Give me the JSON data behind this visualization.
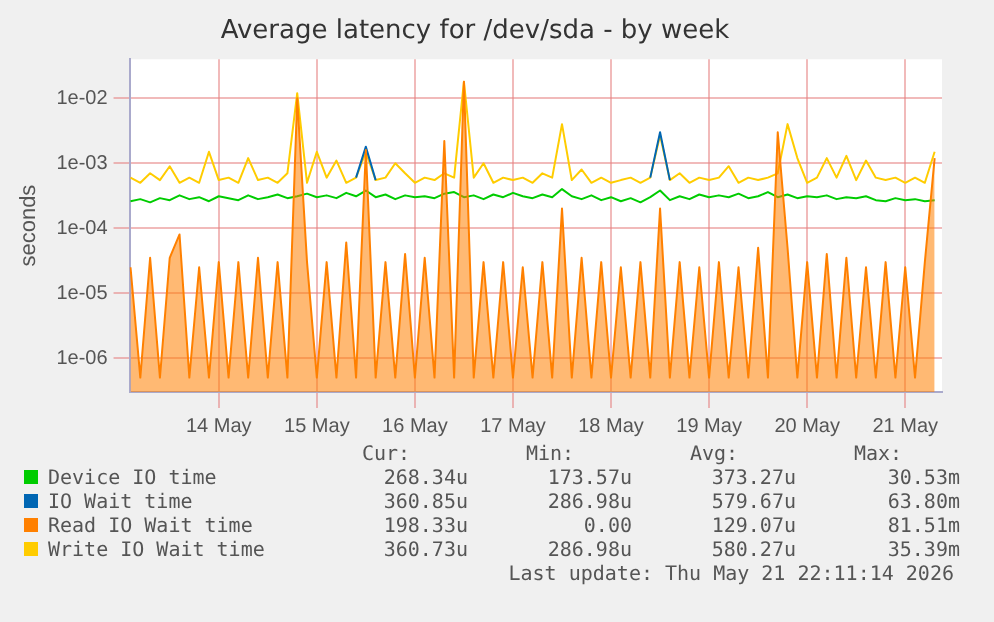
{
  "chart_data": {
    "type": "line",
    "title": "Average latency for /dev/sda - by week",
    "ylabel": "seconds",
    "log": "y",
    "grid": true,
    "legend": "bottom",
    "marker": "none",
    "xlim": [
      "2026-05-13T14:10",
      "2026-05-21T21:00"
    ],
    "xticks": [
      {
        "value": "2026-05-14T12:00",
        "label": "14 May"
      },
      {
        "value": "2026-05-15T12:00",
        "label": "15 May"
      },
      {
        "value": "2026-05-16T12:00",
        "label": "16 May"
      },
      {
        "value": "2026-05-17T12:00",
        "label": "17 May"
      },
      {
        "value": "2026-05-18T12:00",
        "label": "18 May"
      },
      {
        "value": "2026-05-19T12:00",
        "label": "19 May"
      },
      {
        "value": "2026-05-20T12:00",
        "label": "20 May"
      },
      {
        "value": "2026-05-21T12:00",
        "label": "21 May"
      }
    ],
    "ylim": [
      3e-07,
      0.04
    ],
    "yticks": [
      {
        "value": 1e-06,
        "label": "1e-06"
      },
      {
        "value": 1e-05,
        "label": "1e-05"
      },
      {
        "value": 0.0001,
        "label": "1e-04"
      },
      {
        "value": 0.001,
        "label": "1e-03"
      },
      {
        "value": 0.01,
        "label": "1e-02"
      }
    ],
    "x": [
      "2026-05-13T14:24",
      "2026-05-13T16:48",
      "2026-05-13T19:12",
      "2026-05-13T21:36",
      "2026-05-14T00:00",
      "2026-05-14T02:24",
      "2026-05-14T04:48",
      "2026-05-14T07:12",
      "2026-05-14T09:36",
      "2026-05-14T12:00",
      "2026-05-14T14:24",
      "2026-05-14T16:48",
      "2026-05-14T19:12",
      "2026-05-14T21:36",
      "2026-05-15T00:00",
      "2026-05-15T02:24",
      "2026-05-15T04:48",
      "2026-05-15T07:12",
      "2026-05-15T09:36",
      "2026-05-15T12:00",
      "2026-05-15T14:24",
      "2026-05-15T16:48",
      "2026-05-15T19:12",
      "2026-05-15T21:36",
      "2026-05-16T00:00",
      "2026-05-16T02:24",
      "2026-05-16T04:48",
      "2026-05-16T07:12",
      "2026-05-16T09:36",
      "2026-05-16T12:00",
      "2026-05-16T14:24",
      "2026-05-16T16:48",
      "2026-05-16T19:12",
      "2026-05-16T21:36",
      "2026-05-17T00:00",
      "2026-05-17T02:24",
      "2026-05-17T04:48",
      "2026-05-17T07:12",
      "2026-05-17T09:36",
      "2026-05-17T12:00",
      "2026-05-17T14:24",
      "2026-05-17T16:48",
      "2026-05-17T19:12",
      "2026-05-17T21:36",
      "2026-05-18T00:00",
      "2026-05-18T02:24",
      "2026-05-18T04:48",
      "2026-05-18T07:12",
      "2026-05-18T09:36",
      "2026-05-18T12:00",
      "2026-05-18T14:24",
      "2026-05-18T16:48",
      "2026-05-18T19:12",
      "2026-05-18T21:36",
      "2026-05-19T00:00",
      "2026-05-19T02:24",
      "2026-05-19T04:48",
      "2026-05-19T07:12",
      "2026-05-19T09:36",
      "2026-05-19T12:00",
      "2026-05-19T14:24",
      "2026-05-19T16:48",
      "2026-05-19T19:12",
      "2026-05-19T21:36",
      "2026-05-20T00:00",
      "2026-05-20T02:24",
      "2026-05-20T04:48",
      "2026-05-20T07:12",
      "2026-05-20T09:36",
      "2026-05-20T12:00",
      "2026-05-20T14:24",
      "2026-05-20T16:48",
      "2026-05-20T19:12",
      "2026-05-20T21:36",
      "2026-05-21T00:00",
      "2026-05-21T02:24",
      "2026-05-21T04:48",
      "2026-05-21T07:12",
      "2026-05-21T09:36",
      "2026-05-21T12:00",
      "2026-05-21T14:24",
      "2026-05-21T16:48",
      "2026-05-21T19:12"
    ],
    "series": [
      {
        "name": "Read IO Wait time",
        "type": "area",
        "color": "#ff8000",
        "values": [
          2.5e-05,
          5e-07,
          3.5e-05,
          5e-07,
          3.5e-05,
          8e-05,
          5e-07,
          2.5e-05,
          5e-07,
          3e-05,
          5e-07,
          3e-05,
          5e-07,
          3.5e-05,
          5e-07,
          3e-05,
          5e-07,
          0.01,
          3e-05,
          5e-07,
          3e-05,
          5e-07,
          6e-05,
          5e-07,
          0.0016,
          5e-07,
          3e-05,
          5e-07,
          4e-05,
          5e-07,
          3.5e-05,
          5e-07,
          0.0022,
          5e-07,
          0.018,
          5e-07,
          3e-05,
          5e-07,
          3e-05,
          5e-07,
          2.5e-05,
          5e-07,
          3e-05,
          5e-07,
          0.0002,
          5e-07,
          3.5e-05,
          5e-07,
          3e-05,
          5e-07,
          2.5e-05,
          5e-07,
          3e-05,
          5e-07,
          0.0002,
          5e-07,
          3e-05,
          5e-07,
          2.5e-05,
          5e-07,
          3e-05,
          5e-07,
          2.5e-05,
          5e-07,
          5e-05,
          5e-07,
          0.003,
          5e-05,
          5e-07,
          3e-05,
          5e-07,
          4e-05,
          5e-07,
          3.5e-05,
          5e-07,
          2.5e-05,
          5e-07,
          3e-05,
          5e-07,
          2.5e-05,
          5e-07,
          3e-05,
          0.0012
        ]
      },
      {
        "name": "Device IO time",
        "color": "#00cc00",
        "values": [
          0.00026,
          0.00028,
          0.00025,
          0.00029,
          0.00027,
          0.00032,
          0.00028,
          0.0003,
          0.00026,
          0.00031,
          0.00029,
          0.00027,
          0.00032,
          0.00028,
          0.0003,
          0.00033,
          0.00029,
          0.00031,
          0.00034,
          0.0003,
          0.00032,
          0.00029,
          0.00035,
          0.00031,
          0.00038,
          0.0003,
          0.00033,
          0.00028,
          0.00032,
          0.0003,
          0.00031,
          0.00029,
          0.00034,
          0.00036,
          0.0003,
          0.00032,
          0.00028,
          0.00033,
          0.0003,
          0.00035,
          0.00031,
          0.00029,
          0.00033,
          0.0003,
          0.0004,
          0.00031,
          0.00028,
          0.00032,
          0.00027,
          0.0003,
          0.00026,
          0.00029,
          0.00025,
          0.0003,
          0.00038,
          0.00027,
          0.00031,
          0.00028,
          0.00033,
          0.0003,
          0.00032,
          0.0003,
          0.00034,
          0.00029,
          0.00031,
          0.00036,
          0.0003,
          0.00033,
          0.00029,
          0.00031,
          0.0003,
          0.00032,
          0.00028,
          0.0003,
          0.00029,
          0.00031,
          0.00027,
          0.00026,
          0.00029,
          0.00027,
          0.00028,
          0.00026,
          0.00027
        ]
      },
      {
        "name": "IO Wait time",
        "color": "#0066b3",
        "values": [
          null,
          null,
          null,
          null,
          null,
          null,
          null,
          null,
          null,
          null,
          null,
          null,
          null,
          null,
          null,
          null,
          null,
          null,
          null,
          null,
          null,
          null,
          null,
          0.0006,
          0.0018,
          0.00055,
          null,
          null,
          null,
          null,
          null,
          null,
          null,
          null,
          null,
          null,
          null,
          null,
          null,
          null,
          null,
          null,
          null,
          null,
          null,
          null,
          null,
          null,
          null,
          null,
          null,
          null,
          null,
          0.0006,
          0.003,
          0.00055,
          null,
          null,
          null,
          null,
          null,
          null,
          null,
          null,
          null,
          null,
          null,
          null,
          null,
          null,
          null,
          null,
          null,
          null,
          null,
          null,
          null,
          null,
          null,
          null,
          null,
          null,
          null
        ]
      },
      {
        "name": "Write IO Wait time",
        "color": "#ffcc00",
        "values": [
          0.0006,
          0.0005,
          0.0007,
          0.00055,
          0.0009,
          0.0005,
          0.0006,
          0.0005,
          0.0015,
          0.00055,
          0.0006,
          0.0005,
          0.0012,
          0.00055,
          0.0006,
          0.0005,
          0.0007,
          0.012,
          0.0005,
          0.0015,
          0.0006,
          0.0011,
          0.0005,
          0.0006,
          0.0015,
          0.00055,
          0.0006,
          0.001,
          0.0007,
          0.0005,
          0.0006,
          0.00055,
          0.0007,
          0.0006,
          0.018,
          0.0006,
          0.001,
          0.0005,
          0.0006,
          0.00055,
          0.0006,
          0.0005,
          0.0007,
          0.0006,
          0.004,
          0.00055,
          0.0008,
          0.0005,
          0.0006,
          0.0005,
          0.00055,
          0.0006,
          0.0005,
          0.0006,
          0.0027,
          0.00055,
          0.0007,
          0.0005,
          0.0006,
          0.00055,
          0.0006,
          0.0009,
          0.0005,
          0.0006,
          0.00055,
          0.0006,
          0.0007,
          0.004,
          0.0012,
          0.0005,
          0.0006,
          0.0012,
          0.0006,
          0.0013,
          0.00055,
          0.0011,
          0.0006,
          0.00055,
          0.0006,
          0.0005,
          0.0006,
          0.0005,
          0.0015
        ]
      }
    ],
    "annotations": [
      "Cur:",
      "Min:",
      "Avg:",
      "Max:",
      "198.33u",
      "0.00",
      "129.07u",
      "81.51m",
      "268.34u",
      "173.57u",
      "373.27u",
      "30.53m",
      "360.85u",
      "286.98u",
      "579.67u",
      "63.80m",
      "360.73u",
      "286.98u",
      "580.27u",
      "35.39m",
      "Last update: Thu May 21 22:11:14 2026"
    ]
  }
}
